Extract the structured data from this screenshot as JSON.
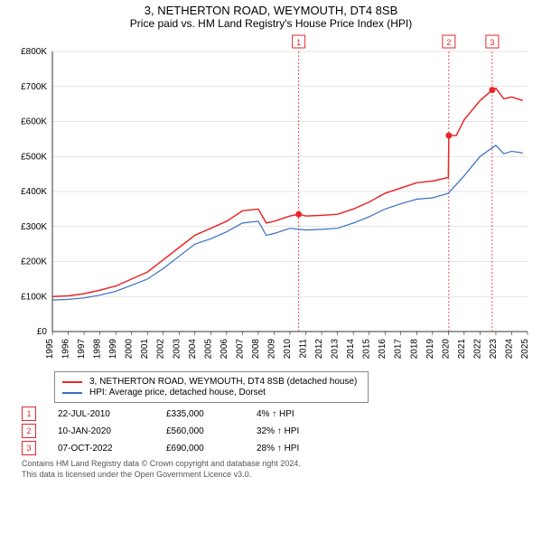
{
  "title": "3, NETHERTON ROAD, WEYMOUTH, DT4 8SB",
  "subtitle": "Price paid vs. HM Land Registry's House Price Index (HPI)",
  "chart": {
    "type": "line",
    "background_color": "#ffffff",
    "grid_color": "#cccccc",
    "y": {
      "min": 0,
      "max": 800,
      "step": 100,
      "labels": [
        "£0",
        "£100K",
        "£200K",
        "£300K",
        "£400K",
        "£500K",
        "£600K",
        "£700K",
        "£800K"
      ],
      "label_fontsize": 10
    },
    "x": {
      "min": 1995,
      "max": 2025,
      "step": 1,
      "labels": [
        "1995",
        "1996",
        "1997",
        "1998",
        "1999",
        "2000",
        "2001",
        "2002",
        "2003",
        "2004",
        "2005",
        "2006",
        "2007",
        "2008",
        "2009",
        "2010",
        "2011",
        "2012",
        "2013",
        "2014",
        "2015",
        "2016",
        "2017",
        "2018",
        "2019",
        "2020",
        "2021",
        "2022",
        "2023",
        "2024",
        "2025"
      ],
      "label_fontsize": 10
    },
    "series": [
      {
        "name": "property",
        "color": "#e8272a",
        "width": 1.5,
        "data": [
          [
            1995,
            100
          ],
          [
            1996,
            102
          ],
          [
            1997,
            108
          ],
          [
            1998,
            118
          ],
          [
            1999,
            130
          ],
          [
            2000,
            150
          ],
          [
            2001,
            170
          ],
          [
            2002,
            205
          ],
          [
            2003,
            240
          ],
          [
            2004,
            275
          ],
          [
            2005,
            295
          ],
          [
            2006,
            315
          ],
          [
            2007,
            345
          ],
          [
            2008,
            350
          ],
          [
            2008.5,
            310
          ],
          [
            2009,
            315
          ],
          [
            2010,
            330
          ],
          [
            2010.55,
            335
          ],
          [
            2011,
            330
          ],
          [
            2012,
            332
          ],
          [
            2013,
            335
          ],
          [
            2014,
            350
          ],
          [
            2015,
            370
          ],
          [
            2016,
            395
          ],
          [
            2017,
            410
          ],
          [
            2018,
            425
          ],
          [
            2019,
            430
          ],
          [
            2020,
            440
          ],
          [
            2020.03,
            560
          ],
          [
            2020.5,
            560
          ],
          [
            2021,
            605
          ],
          [
            2022,
            660
          ],
          [
            2022.77,
            690
          ],
          [
            2023,
            695
          ],
          [
            2023.5,
            665
          ],
          [
            2024,
            670
          ],
          [
            2024.7,
            660
          ]
        ]
      },
      {
        "name": "hpi",
        "color": "#3a6fc4",
        "width": 1.2,
        "data": [
          [
            1995,
            90
          ],
          [
            1996,
            92
          ],
          [
            1997,
            96
          ],
          [
            1998,
            104
          ],
          [
            1999,
            115
          ],
          [
            2000,
            132
          ],
          [
            2001,
            150
          ],
          [
            2002,
            180
          ],
          [
            2003,
            215
          ],
          [
            2004,
            250
          ],
          [
            2005,
            265
          ],
          [
            2006,
            285
          ],
          [
            2007,
            310
          ],
          [
            2008,
            315
          ],
          [
            2008.5,
            275
          ],
          [
            2009,
            280
          ],
          [
            2010,
            295
          ],
          [
            2011,
            290
          ],
          [
            2012,
            292
          ],
          [
            2013,
            295
          ],
          [
            2014,
            310
          ],
          [
            2015,
            328
          ],
          [
            2016,
            350
          ],
          [
            2017,
            365
          ],
          [
            2018,
            378
          ],
          [
            2019,
            382
          ],
          [
            2020,
            395
          ],
          [
            2021,
            445
          ],
          [
            2022,
            500
          ],
          [
            2023,
            532
          ],
          [
            2023.5,
            508
          ],
          [
            2024,
            515
          ],
          [
            2024.7,
            510
          ]
        ]
      }
    ],
    "sales": [
      {
        "n": "1",
        "year": 2010.55,
        "price": 335,
        "color": "#e8272a"
      },
      {
        "n": "2",
        "year": 2020.03,
        "price": 560,
        "color": "#e8272a"
      },
      {
        "n": "3",
        "year": 2022.77,
        "price": 690,
        "color": "#e8272a"
      }
    ],
    "dash_color": "#e8272a"
  },
  "legend": {
    "items": [
      {
        "label": "3, NETHERTON ROAD, WEYMOUTH, DT4 8SB (detached house)",
        "color": "#e8272a"
      },
      {
        "label": "HPI: Average price, detached house, Dorset",
        "color": "#3a6fc4"
      }
    ]
  },
  "sales_table": {
    "rows": [
      {
        "n": "1",
        "color": "#e8272a",
        "date": "22-JUL-2010",
        "price": "£335,000",
        "delta": "4% ↑ HPI"
      },
      {
        "n": "2",
        "color": "#e8272a",
        "date": "10-JAN-2020",
        "price": "£560,000",
        "delta": "32% ↑ HPI"
      },
      {
        "n": "3",
        "color": "#e8272a",
        "date": "07-OCT-2022",
        "price": "£690,000",
        "delta": "28% ↑ HPI"
      }
    ]
  },
  "footer": {
    "line1": "Contains HM Land Registry data © Crown copyright and database right 2024.",
    "line2": "This data is licensed under the Open Government Licence v3.0."
  }
}
